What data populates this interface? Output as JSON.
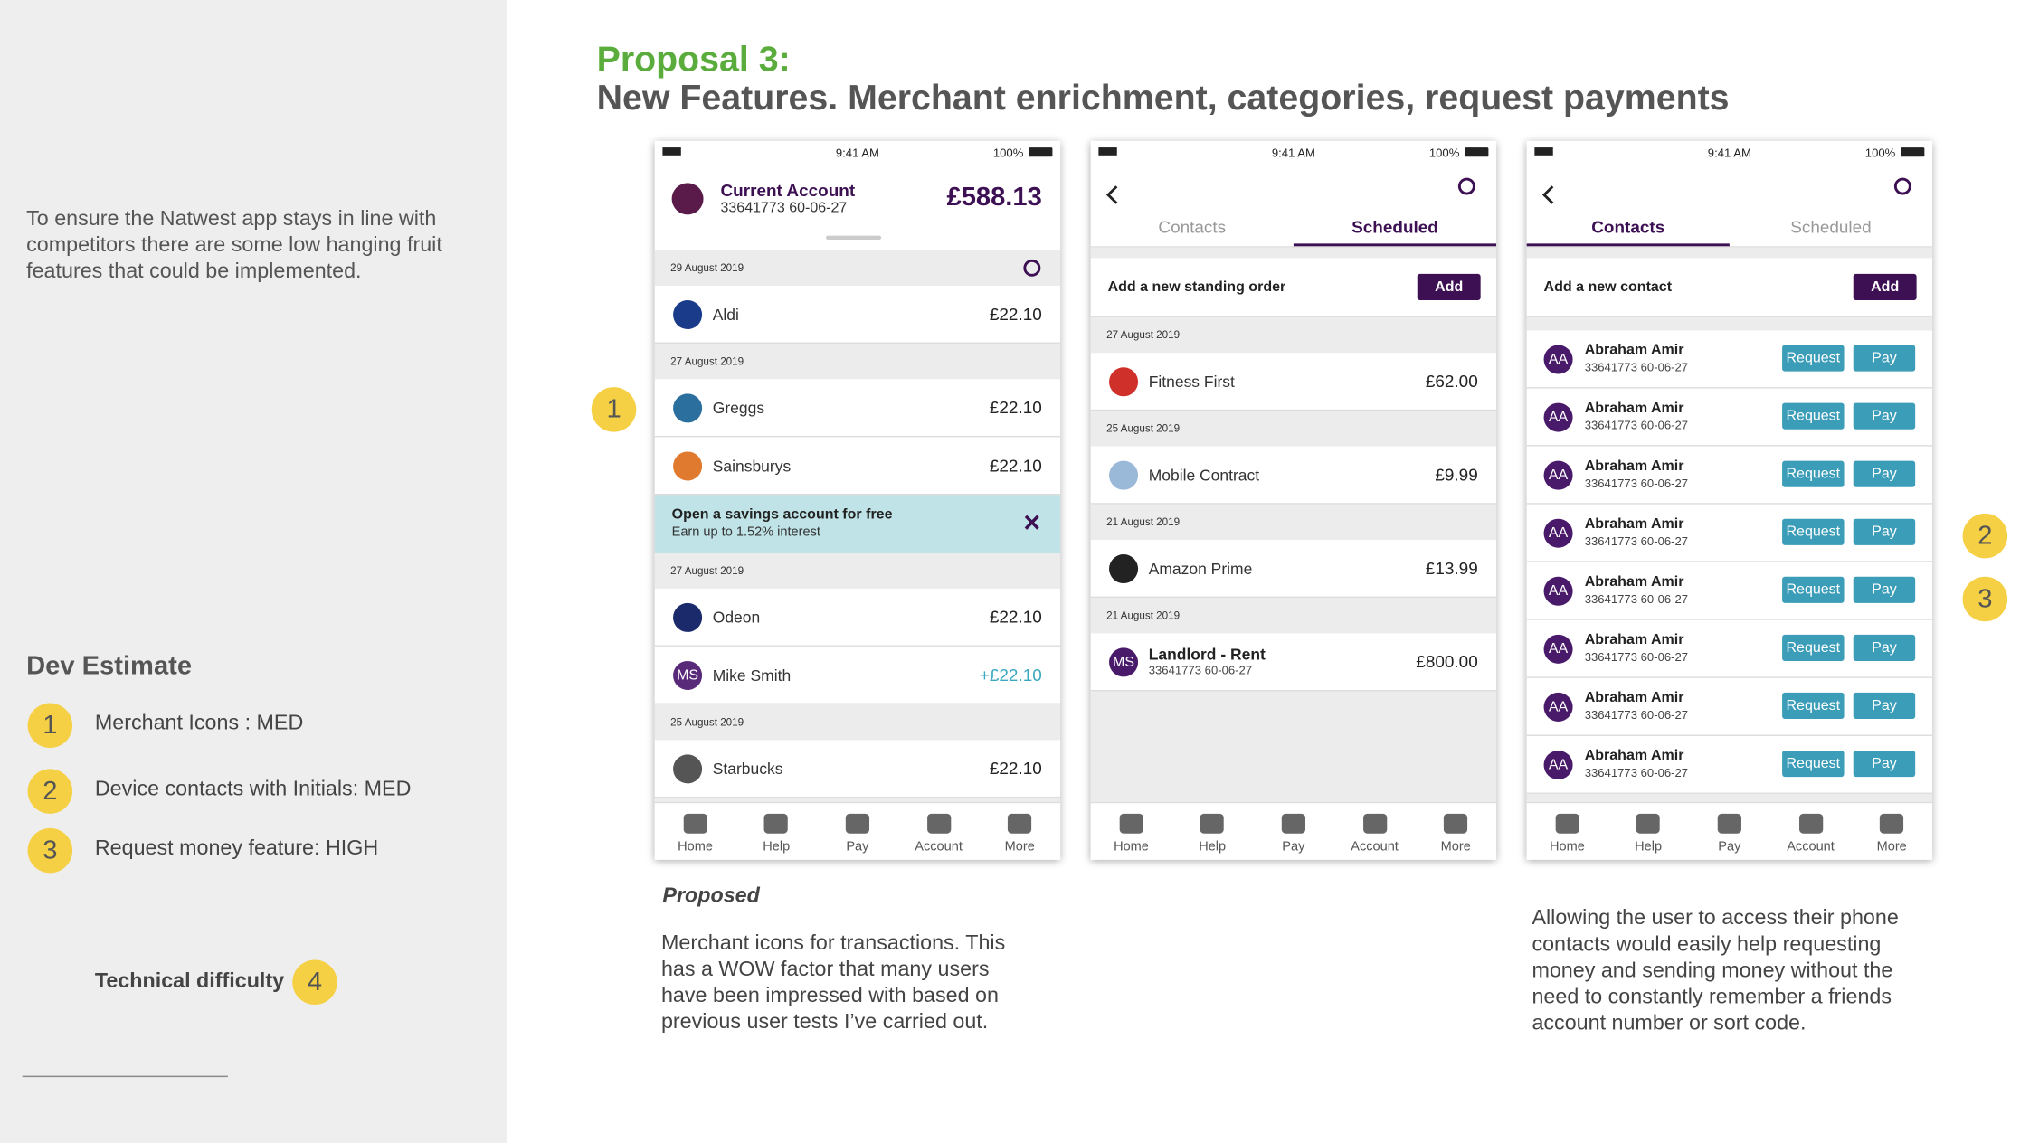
{
  "sidebar": {
    "intro": "To ensure the Natwest app stays in line with competitors there are some low hanging fruit features that could be implemented.",
    "dev_estimate": {
      "title": "Dev Estimate",
      "items": [
        {
          "number": "1",
          "label": "Merchant Icons : MED"
        },
        {
          "number": "2",
          "label": "Device contacts with Initials: MED"
        },
        {
          "number": "3",
          "label": "Request money feature: HIGH"
        }
      ]
    },
    "technical_difficulty": {
      "label": "Technical difficulty",
      "number": "4"
    }
  },
  "header": {
    "proposal": "Proposal 3:",
    "title": "New Features. Merchant enrichment, categories, request payments"
  },
  "markers": [
    "1",
    "2",
    "3"
  ],
  "nav": [
    "Home",
    "Help",
    "Pay",
    "Account",
    "More"
  ],
  "actions": [
    "Request",
    "Pay"
  ],
  "phones": [
    {
      "kind": "account",
      "status": {
        "time": "9:41 AM",
        "battery": "100%"
      },
      "account": {
        "name": "Current Account",
        "number": "33641773  60-06-27",
        "balance": "£588.13"
      },
      "feed": [
        {
          "type": "date",
          "text": "29 August 2019"
        },
        {
          "type": "tx",
          "name": "Aldi",
          "amount": "£22.10",
          "color": "#1a3a8a"
        },
        {
          "type": "date",
          "text": "27 August 2019"
        },
        {
          "type": "tx",
          "name": "Greggs",
          "amount": "£22.10",
          "color": "#2b6f9e"
        },
        {
          "type": "tx",
          "name": "Sainsburys",
          "amount": "£22.10",
          "color": "#e07a2e"
        },
        {
          "type": "promo",
          "title": "Open a savings account for free",
          "subtitle": "Earn up to 1.52% interest"
        },
        {
          "type": "date",
          "text": "27 August 2019"
        },
        {
          "type": "tx",
          "name": "Odeon",
          "amount": "£22.10",
          "color": "#1a2a6a"
        },
        {
          "type": "tx",
          "name": "Mike Smith",
          "amount": "+£22.10",
          "initials": "MS",
          "color": "#5a2a7a",
          "credit": true
        },
        {
          "type": "date",
          "text": "25 August 2019"
        },
        {
          "type": "tx",
          "name": "Starbucks",
          "amount": "£22.10",
          "color": "#555555"
        }
      ]
    },
    {
      "kind": "tabs",
      "status": {
        "time": "9:41 AM",
        "battery": "100%"
      },
      "tabs": [
        "Contacts",
        "Scheduled"
      ],
      "active": 1,
      "add": {
        "label": "Add a new standing order",
        "button": "Add"
      },
      "feed": [
        {
          "type": "date",
          "text": "27 August 2019"
        },
        {
          "type": "tx",
          "name": "Fitness First",
          "amount": "£62.00",
          "color": "#d0302a"
        },
        {
          "type": "date",
          "text": "25 August 2019"
        },
        {
          "type": "tx",
          "name": "Mobile Contract",
          "amount": "£9.99",
          "color": "#9ab8d8"
        },
        {
          "type": "date",
          "text": "21 August 2019"
        },
        {
          "type": "tx",
          "name": "Amazon Prime",
          "amount": "£13.99",
          "color": "#222222"
        },
        {
          "type": "date",
          "text": "21 August 2019"
        },
        {
          "type": "tx",
          "name": "Landlord - Rent",
          "detail": "33641773  60-06-27",
          "amount": "£800.00",
          "initials": "MS",
          "color": "#4a1a6a"
        }
      ]
    },
    {
      "kind": "tabs",
      "status": {
        "time": "9:41 AM",
        "battery": "100%"
      },
      "tabs": [
        "Contacts",
        "Scheduled"
      ],
      "active": 0,
      "add": {
        "label": "Add a new contact",
        "button": "Add"
      },
      "contacts": [
        {
          "initials": "AA",
          "name": "Abraham Amir",
          "detail": "33641773  60-06-27"
        },
        {
          "initials": "AA",
          "name": "Abraham Amir",
          "detail": "33641773  60-06-27"
        },
        {
          "initials": "AA",
          "name": "Abraham Amir",
          "detail": "33641773  60-06-27"
        },
        {
          "initials": "AA",
          "name": "Abraham Amir",
          "detail": "33641773  60-06-27"
        },
        {
          "initials": "AA",
          "name": "Abraham Amir",
          "detail": "33641773  60-06-27"
        },
        {
          "initials": "AA",
          "name": "Abraham Amir",
          "detail": "33641773  60-06-27"
        },
        {
          "initials": "AA",
          "name": "Abraham Amir",
          "detail": "33641773  60-06-27"
        },
        {
          "initials": "AA",
          "name": "Abraham Amir",
          "detail": "33641773  60-06-27"
        }
      ]
    }
  ],
  "captions": {
    "proposed": "Proposed",
    "left": "Merchant icons for transactions. This has a WOW factor that many users have been impressed with based on previous user tests I’ve carried out.",
    "right": "Allowing the user to access their phone contacts would easily help requesting money and sending money without the need to constantly remember a friends account number or sort code."
  }
}
